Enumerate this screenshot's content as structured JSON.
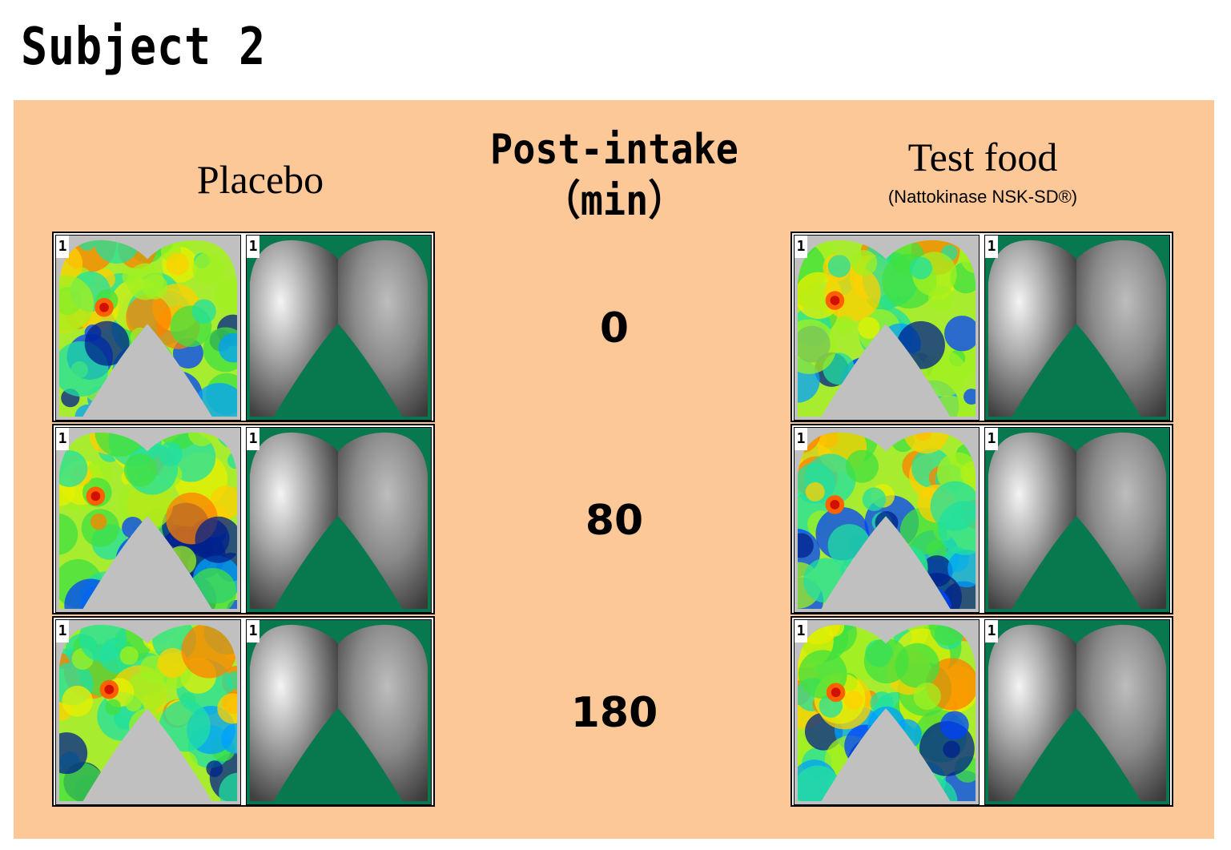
{
  "title": "Subject 2",
  "columns": {
    "placebo": "Placebo",
    "middle": [
      "Post-intake",
      "（min）"
    ],
    "test": "Test food",
    "test_sub": "(Nattokinase NSK-SD®)"
  },
  "timepoints": [
    "0",
    "80",
    "180"
  ],
  "cell_label": "1",
  "colors": {
    "panel_background": "#fcc898",
    "mask_green": "#08784e",
    "mask_gray": "#c0c0c0"
  }
}
